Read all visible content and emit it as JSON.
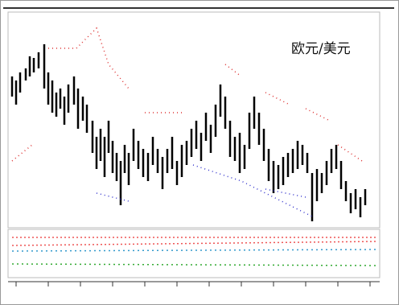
{
  "chart": {
    "title": "欧元/美元"
  }
}
